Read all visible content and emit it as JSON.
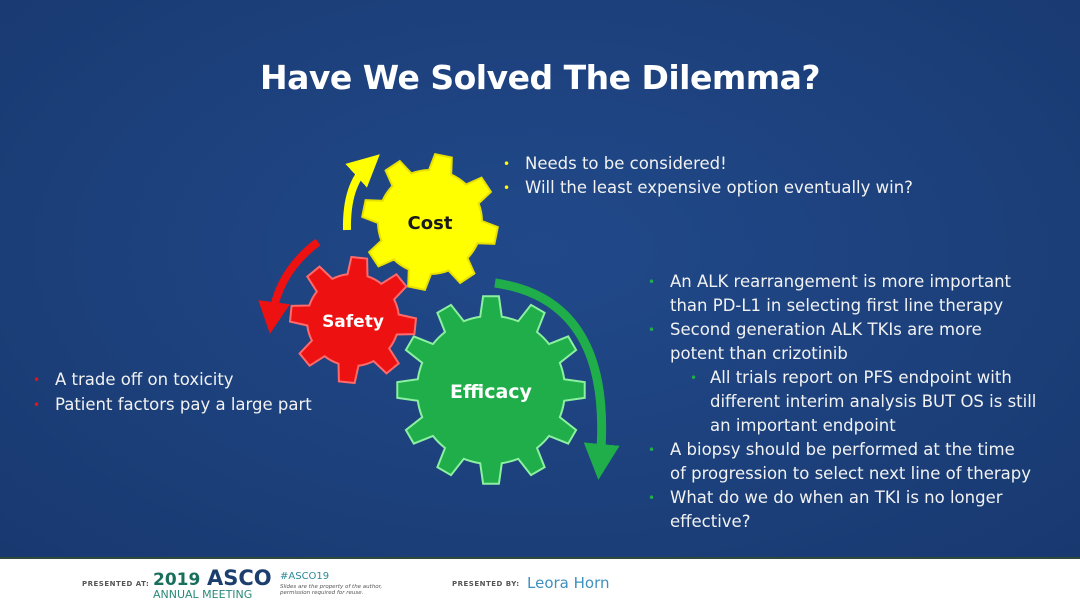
{
  "title": "Have We Solved The Dilemma?",
  "gears": {
    "cost": "Cost",
    "safety": "Safety",
    "efficacy": "Efficacy"
  },
  "colors": {
    "background": "#1c4079",
    "cost": "#ffff00",
    "safety": "#ee1111",
    "efficacy": "#1fae4a"
  },
  "cost_bullets": [
    "Needs to be considered!",
    "Will the least expensive option eventually win?"
  ],
  "safety_bullets": [
    "A trade off on toxicity",
    "Patient factors pay a large part"
  ],
  "efficacy_bullets": [
    {
      "lines": [
        "An ALK rearrangement is more important",
        "than PD-L1 in selecting first line therapy"
      ],
      "level": 1
    },
    {
      "lines": [
        "Second generation ALK TKIs are more",
        "potent than crizotinib"
      ],
      "level": 1
    },
    {
      "lines": [
        "All trials report on PFS endpoint with",
        "different interim analysis BUT OS is still",
        "an important endpoint"
      ],
      "level": 2
    },
    {
      "lines": [
        "A biopsy should be performed at the time",
        "of progression to select next line of therapy"
      ],
      "level": 1
    },
    {
      "lines": [
        "What do we do when an TKI is no longer",
        "effective?"
      ],
      "level": 1
    }
  ],
  "footer": {
    "presented_at": "PRESENTED AT:",
    "year": "2019",
    "asco": "ASCO",
    "annual": "ANNUAL MEETING",
    "hashtag": "#ASCO19",
    "disclaimer1": "Slides are the property of the author,",
    "disclaimer2": "permission required for reuse.",
    "presented_by": "PRESENTED BY:",
    "presenter": "Leora Horn"
  }
}
